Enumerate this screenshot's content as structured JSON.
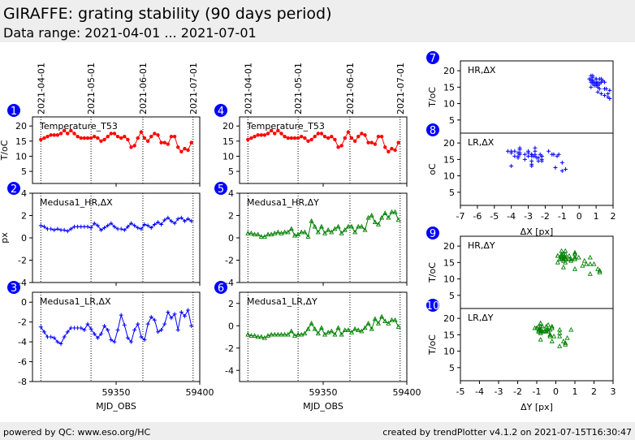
{
  "header": {
    "title": "GIRAFFE: grating stability (90 days period)",
    "subtitle": "Data range: 2021-04-01 ... 2021-07-01"
  },
  "footer": {
    "left": "powered by QC: www.eso.org/HC",
    "right": "created by trendPlotter v4.1.2 on 2021-07-15T16:30:47"
  },
  "colors": {
    "temperature": "#ff0000",
    "dx": "#0000ff",
    "dy": "#008000",
    "badge": "#0000ff"
  },
  "chart_data": {
    "type": "line",
    "dates": [
      {
        "label": "2021-04-01",
        "mjd": 59305
      },
      {
        "label": "2021-05-01",
        "mjd": 59335
      },
      {
        "label": "2021-06-01",
        "mjd": 59366
      },
      {
        "label": "2021-07-01",
        "mjd": 59396
      }
    ],
    "xlabel": "MJD_OBS",
    "xlim": [
      59300,
      59400
    ],
    "xticks": [
      59350,
      59400
    ],
    "x_start": 59305,
    "x_step": 2,
    "series": {
      "temp": [
        15.5,
        16,
        16.5,
        17,
        17,
        17,
        17.5,
        18.5,
        17.5,
        18.5,
        17.5,
        16.5,
        16,
        16,
        16,
        16,
        16.5,
        16,
        15,
        15.5,
        16.5,
        17.5,
        17.5,
        16.5,
        16,
        16.5,
        15.5,
        13,
        13.5,
        16,
        18,
        16,
        15,
        16.5,
        17.5,
        17,
        14.5,
        14.5,
        14,
        16.5,
        16.5,
        13,
        11.5,
        12.5,
        12,
        14.5
      ],
      "hr_dx": [
        1.1,
        1,
        0.8,
        0.8,
        0.7,
        0.8,
        0.7,
        0.7,
        0.6,
        0.8,
        1,
        1,
        1,
        1,
        1,
        0.9,
        1.3,
        1.1,
        0.7,
        0.9,
        1.1,
        1.3,
        1,
        0.8,
        0.8,
        0.7,
        1,
        1.3,
        1.1,
        0.9,
        0.8,
        1.2,
        1.1,
        0.9,
        1.2,
        1.4,
        1.2,
        1.6,
        1.8,
        1.5,
        1.3,
        1.7,
        1.8,
        1.5,
        1.7,
        1.5
      ],
      "lr_dx": [
        -2.5,
        -3,
        -3.5,
        -3.5,
        -3.6,
        -4,
        -4.2,
        -3.5,
        -3,
        -2.6,
        -2.6,
        -2.6,
        -2.6,
        -2.8,
        -2.2,
        -2.7,
        -3.2,
        -3.6,
        -3.2,
        -2.4,
        -2.8,
        -3.8,
        -4,
        -2.8,
        -1.3,
        -2.3,
        -3.6,
        -4,
        -2.8,
        -2.2,
        -3.5,
        -3.8,
        -2.2,
        -1.5,
        -1.8,
        -3,
        -2.8,
        -2.2,
        -1,
        -1.6,
        -1.2,
        -2.8,
        -1,
        -1.4,
        -0.8,
        -2.4
      ],
      "hr_dy": [
        0.4,
        0.4,
        0.3,
        0.3,
        0.1,
        0.1,
        0.3,
        0.3,
        0.4,
        0.5,
        0.4,
        0.5,
        0.5,
        0.8,
        0.2,
        0.3,
        0.5,
        0.5,
        0.1,
        1.5,
        1,
        0.5,
        1,
        0.4,
        0.7,
        0.5,
        0.8,
        1,
        0.4,
        0.7,
        1,
        1,
        0.5,
        1,
        1,
        0.7,
        1.8,
        2,
        1.4,
        1.2,
        1.8,
        2.2,
        1.8,
        2.3,
        2.3,
        1.6
      ],
      "lr_dy": [
        -0.8,
        -0.9,
        -0.9,
        -1,
        -1,
        -1.1,
        -0.9,
        -0.8,
        -0.8,
        -0.8,
        -0.8,
        -0.8,
        -0.8,
        -0.5,
        -0.9,
        -0.8,
        -0.8,
        -0.7,
        -0.3,
        0.2,
        -0.3,
        -0.7,
        -0.2,
        -0.8,
        -0.6,
        -0.5,
        -0.8,
        -0.2,
        -0.8,
        -0.4,
        -0.4,
        -0.6,
        -0.3,
        -0.4,
        -0.5,
        -0.2,
        0.2,
        -0.3,
        0.6,
        0.2,
        0.8,
        0.4,
        0.2,
        0.5,
        0.5,
        -0.1
      ]
    },
    "panels": [
      {
        "badge": "1",
        "label": "Temperature_T53",
        "series": "temp",
        "ylim": [
          1,
          23
        ],
        "yticks": [
          5,
          10,
          15,
          20
        ],
        "ylabel": "T/oC",
        "color": "#ff0000",
        "marker": "circle"
      },
      {
        "badge": "2",
        "label": "Medusa1_HR,ΔX",
        "series": "hr_dx",
        "ylim": [
          -4,
          4
        ],
        "yticks": [
          -4,
          -2,
          0,
          2,
          4
        ],
        "ylabel": "px",
        "color": "#0000ff",
        "marker": "plus"
      },
      {
        "badge": "3",
        "label": "Medusa1_LR,ΔX",
        "series": "lr_dx",
        "ylim": [
          -8,
          1
        ],
        "yticks": [
          -8,
          -6,
          -4,
          -2,
          0
        ],
        "ylabel": "",
        "color": "#0000ff",
        "marker": "plus"
      },
      {
        "badge": "4",
        "label": "Temperature_T53",
        "series": "temp",
        "ylim": [
          1,
          23
        ],
        "yticks": [
          5,
          10,
          15,
          20
        ],
        "ylabel": "",
        "color": "#ff0000",
        "marker": "circle"
      },
      {
        "badge": "5",
        "label": "Medusa1_HR,ΔY",
        "series": "hr_dy",
        "ylim": [
          -4,
          4
        ],
        "yticks": [
          -4,
          -2,
          0,
          2,
          4
        ],
        "ylabel": "",
        "color": "#008000",
        "marker": "tri"
      },
      {
        "badge": "6",
        "label": "Medusa1_LR,ΔY",
        "series": "lr_dy",
        "ylim": [
          -5,
          3
        ],
        "yticks": [
          -4,
          -2,
          0,
          2
        ],
        "ylabel": "",
        "color": "#008000",
        "marker": "tri"
      }
    ],
    "scatter": [
      {
        "badge": "7",
        "label": "HR,ΔX",
        "x": "hr_dx",
        "ylabel": "T/oC",
        "color": "#0000ff",
        "marker": "plus",
        "xlim": [
          -7,
          2
        ]
      },
      {
        "badge": "8",
        "label": "LR,ΔX",
        "x": "lr_dx",
        "ylabel": "oC",
        "color": "#0000ff",
        "marker": "plus",
        "xlim": [
          -7,
          2
        ],
        "xlabel": "ΔX [px]",
        "xticks": [
          -7,
          -6,
          -5,
          -4,
          -3,
          -2,
          -1,
          0,
          1,
          2
        ]
      },
      {
        "badge": "9",
        "label": "HR,ΔY",
        "x": "hr_dy",
        "ylabel": "T/oC",
        "color": "#008000",
        "marker": "tri",
        "xlim": [
          -5,
          3
        ]
      },
      {
        "badge": "10",
        "label": "LR,ΔY",
        "x": "lr_dy",
        "ylabel": "T/oC",
        "color": "#008000",
        "marker": "tri",
        "xlim": [
          -5,
          3
        ],
        "xlabel": "ΔY [px]",
        "xticks": [
          -5,
          -4,
          -3,
          -2,
          -1,
          0,
          1,
          2,
          3
        ]
      }
    ],
    "scatter_ylim": [
      1,
      23
    ],
    "scatter_yticks": [
      5,
      10,
      15,
      20
    ]
  }
}
